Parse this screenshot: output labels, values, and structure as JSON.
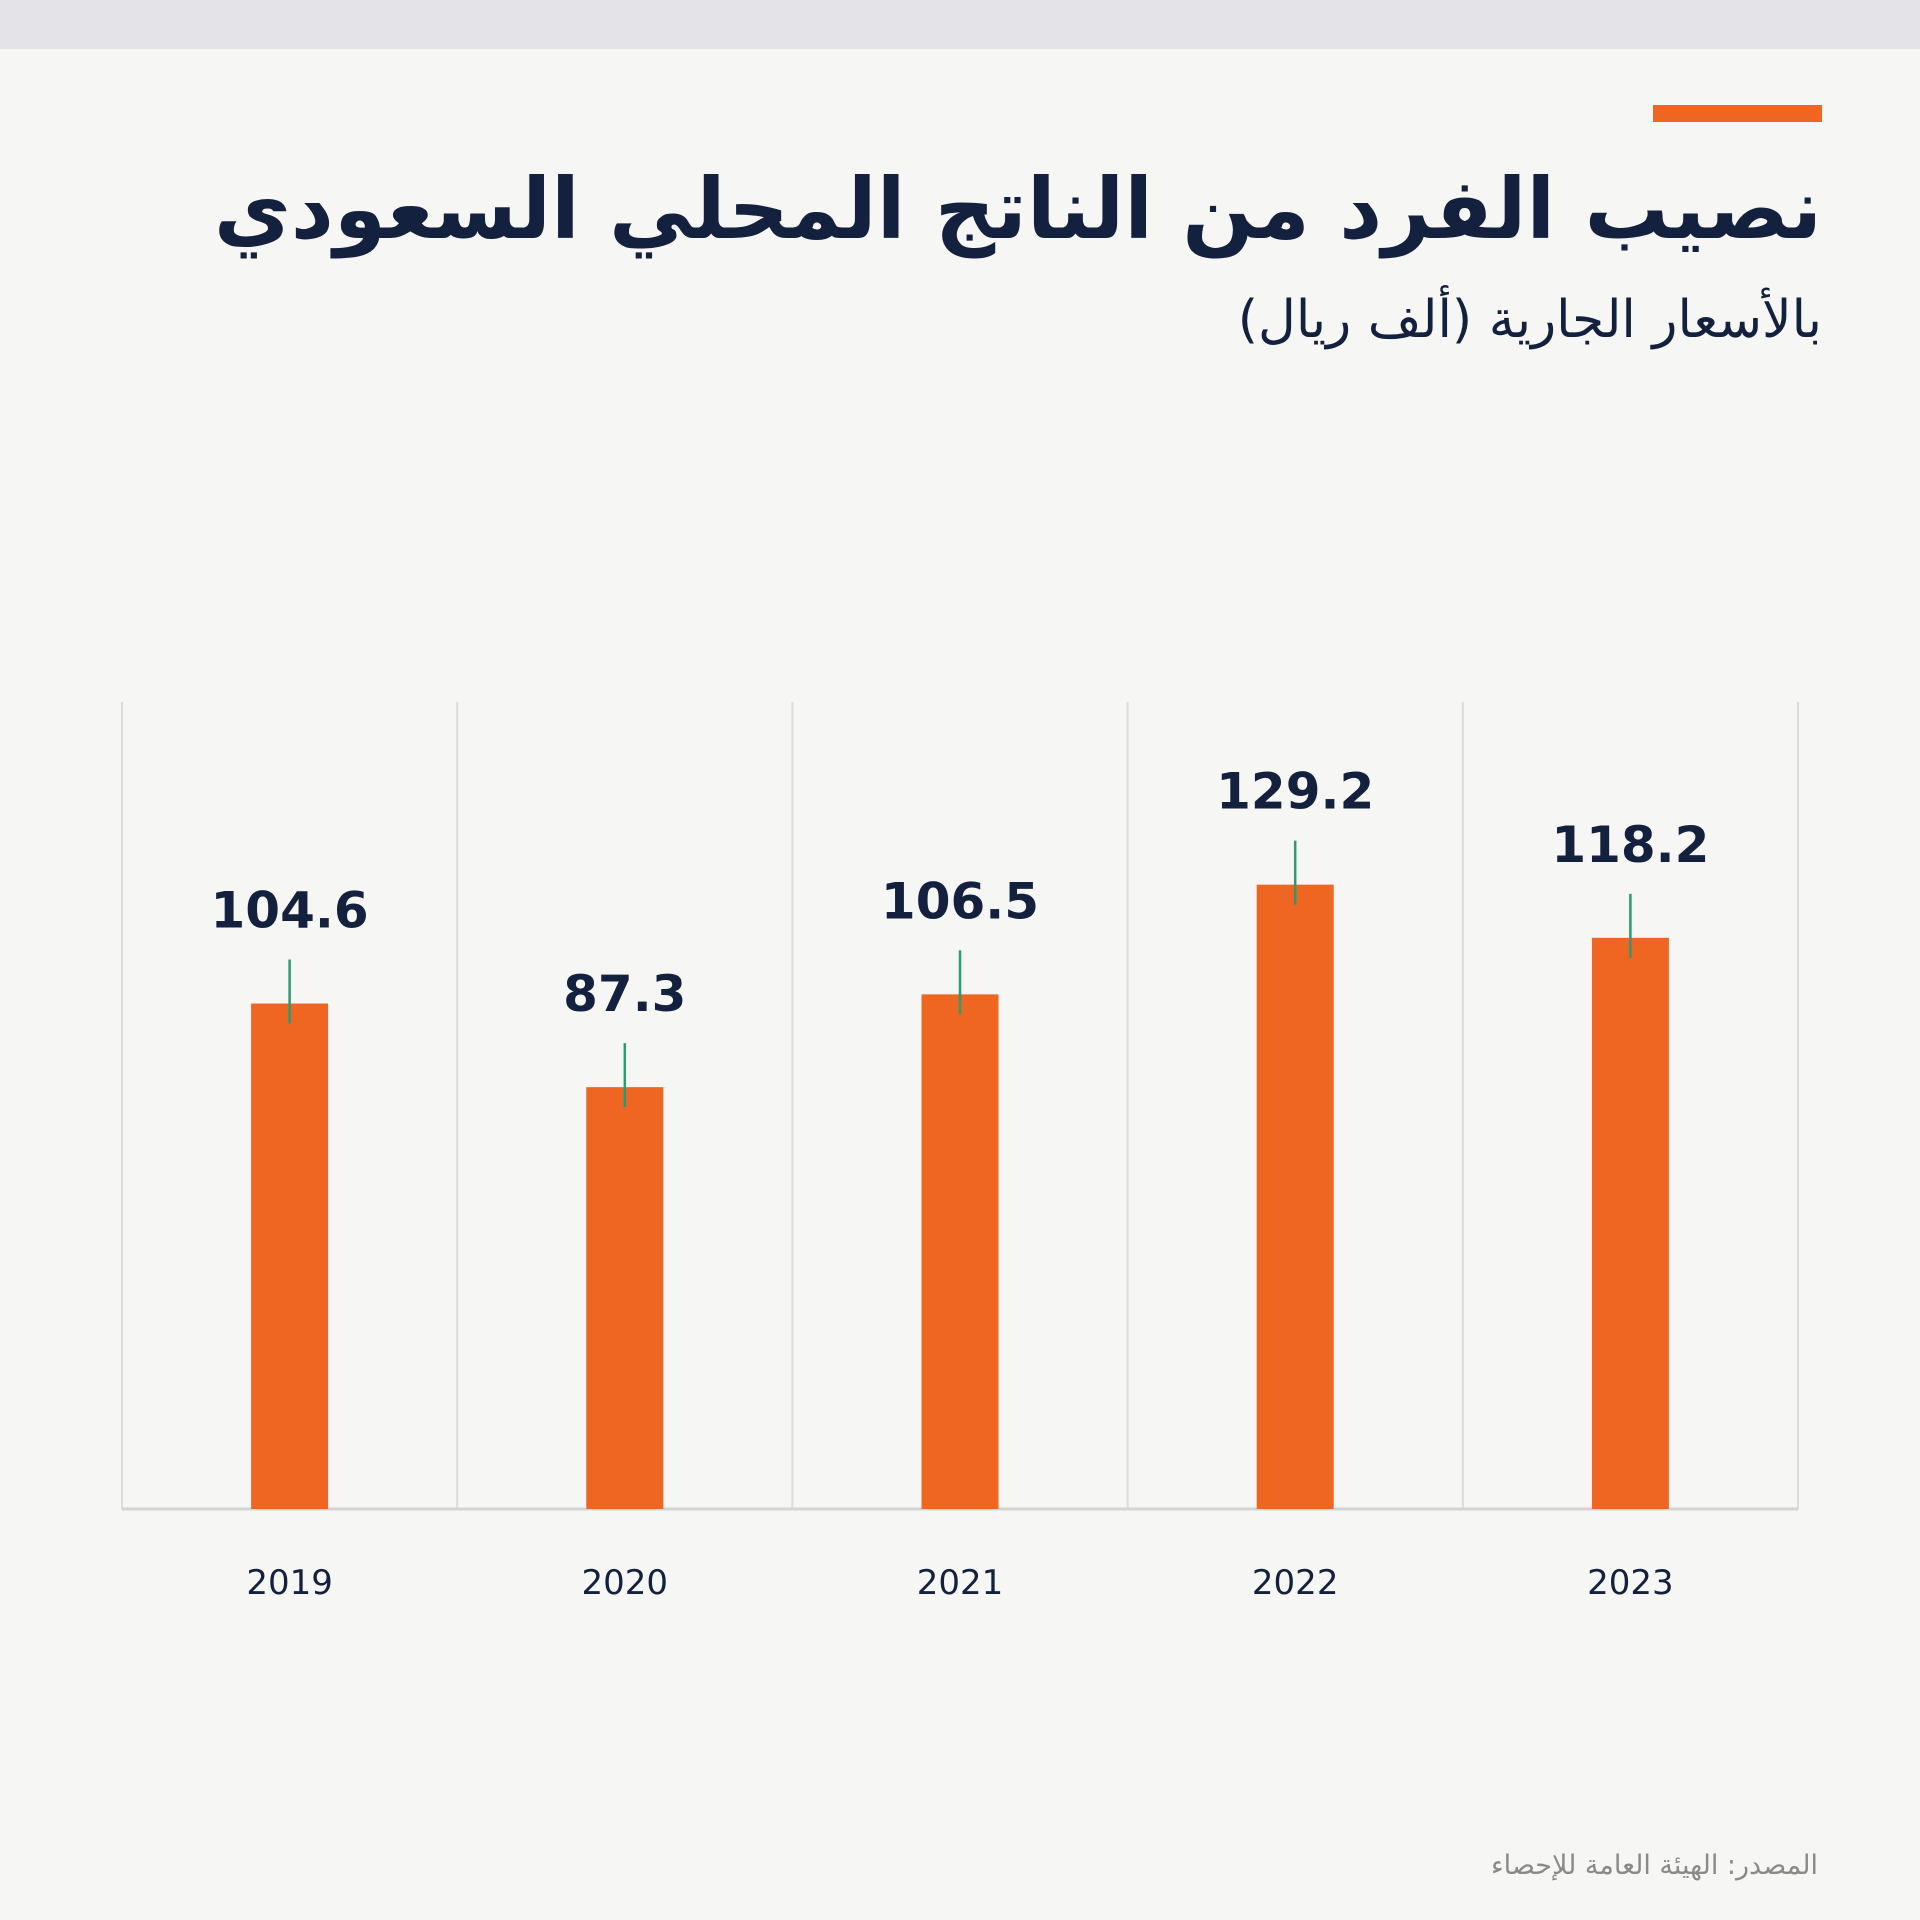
{
  "header": {
    "title": "نصيب الفرد من الناتج المحلي السعودي",
    "subtitle": "بالأسعار الجارية (ألف ريال)"
  },
  "footer": {
    "source": "المصدر: الهيئة العامة للإحصاء"
  },
  "colors": {
    "bar": "#ef6623",
    "tick": "#2e9a74",
    "text": "#13213f",
    "grid": "#dcdcdc",
    "background": "#f6f6f4"
  },
  "chart_data": {
    "type": "bar",
    "categories": [
      "2019",
      "2020",
      "2021",
      "2022",
      "2023"
    ],
    "values": [
      104.6,
      87.3,
      106.5,
      129.2,
      118.2
    ],
    "labels": [
      "104.6",
      "87.3",
      "106.5",
      "129.2",
      "118.2"
    ],
    "ylim": [
      0,
      167
    ],
    "grid": "vertical separators",
    "legend": "none"
  }
}
